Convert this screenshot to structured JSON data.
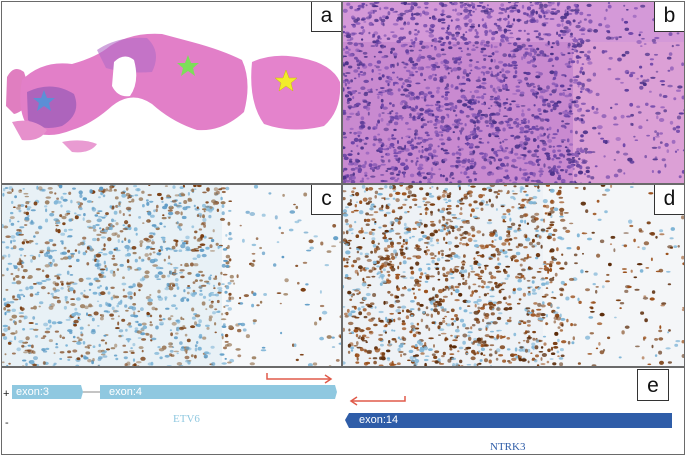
{
  "panels": {
    "a": {
      "label": "a"
    },
    "b": {
      "label": "b"
    },
    "c": {
      "label": "c"
    },
    "d": {
      "label": "d"
    },
    "e": {
      "label": "e"
    }
  },
  "track": {
    "plus_label": "+",
    "minus_label": "-",
    "etv6": {
      "gene": "ETV6",
      "exon_left": "exon:3",
      "exon_right": "exon:4",
      "color": "#8fc8e0"
    },
    "ntrk3": {
      "gene": "NTRK3",
      "exon": "exon:14",
      "color": "#2f5da8"
    },
    "arrow_color": "#e05a4a"
  },
  "colors": {
    "he_tissue": "#e27fc8",
    "he_dense": "#9b5bb8",
    "ihc_brown": "#7a3e12",
    "ihc_blue": "#7db4d6",
    "star_blue": "#5b8fd6",
    "star_green": "#7dde5a",
    "star_yellow": "#f2ec2a"
  }
}
